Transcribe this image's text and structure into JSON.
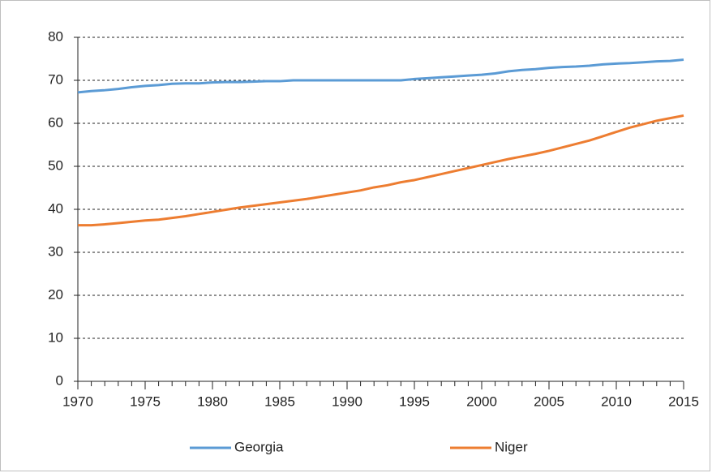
{
  "chart_data": {
    "type": "line",
    "x": [
      1970,
      1971,
      1972,
      1973,
      1974,
      1975,
      1976,
      1977,
      1978,
      1979,
      1980,
      1981,
      1982,
      1983,
      1984,
      1985,
      1986,
      1987,
      1988,
      1989,
      1990,
      1991,
      1992,
      1993,
      1994,
      1995,
      1996,
      1997,
      1998,
      1999,
      2000,
      2001,
      2002,
      2003,
      2004,
      2005,
      2006,
      2007,
      2008,
      2009,
      2010,
      2011,
      2012,
      2013,
      2014,
      2015
    ],
    "series": [
      {
        "name": "Georgia",
        "color": "#5b9bd5",
        "values": [
          67.2,
          67.5,
          67.7,
          68.0,
          68.4,
          68.7,
          68.9,
          69.2,
          69.3,
          69.3,
          69.5,
          69.6,
          69.6,
          69.7,
          69.8,
          69.8,
          70.0,
          70.0,
          70.0,
          70.0,
          70.0,
          70.0,
          70.0,
          70.0,
          70.0,
          70.3,
          70.5,
          70.7,
          70.9,
          71.1,
          71.3,
          71.6,
          72.1,
          72.4,
          72.6,
          72.9,
          73.1,
          73.2,
          73.4,
          73.7,
          73.9,
          74.0,
          74.2,
          74.4,
          74.5,
          74.8
        ]
      },
      {
        "name": "Niger",
        "color": "#ed7d31",
        "values": [
          36.3,
          36.3,
          36.5,
          36.8,
          37.1,
          37.4,
          37.6,
          38.0,
          38.4,
          38.9,
          39.4,
          39.9,
          40.4,
          40.8,
          41.2,
          41.6,
          42.0,
          42.4,
          42.9,
          43.4,
          43.9,
          44.4,
          45.1,
          45.6,
          46.3,
          46.8,
          47.5,
          48.2,
          48.9,
          49.6,
          50.3,
          51.0,
          51.7,
          52.3,
          52.9,
          53.6,
          54.4,
          55.2,
          56.0,
          57.0,
          58.0,
          59.0,
          59.8,
          60.6,
          61.2,
          61.8
        ]
      }
    ],
    "xlim": [
      1970,
      2015
    ],
    "xticks": [
      1970,
      1975,
      1980,
      1985,
      1990,
      1995,
      2000,
      2005,
      2010,
      2015
    ],
    "ylim": [
      0,
      80
    ],
    "yticks": [
      0,
      10,
      20,
      30,
      40,
      50,
      60,
      70,
      80
    ],
    "grid": true,
    "legend": "bottom"
  }
}
